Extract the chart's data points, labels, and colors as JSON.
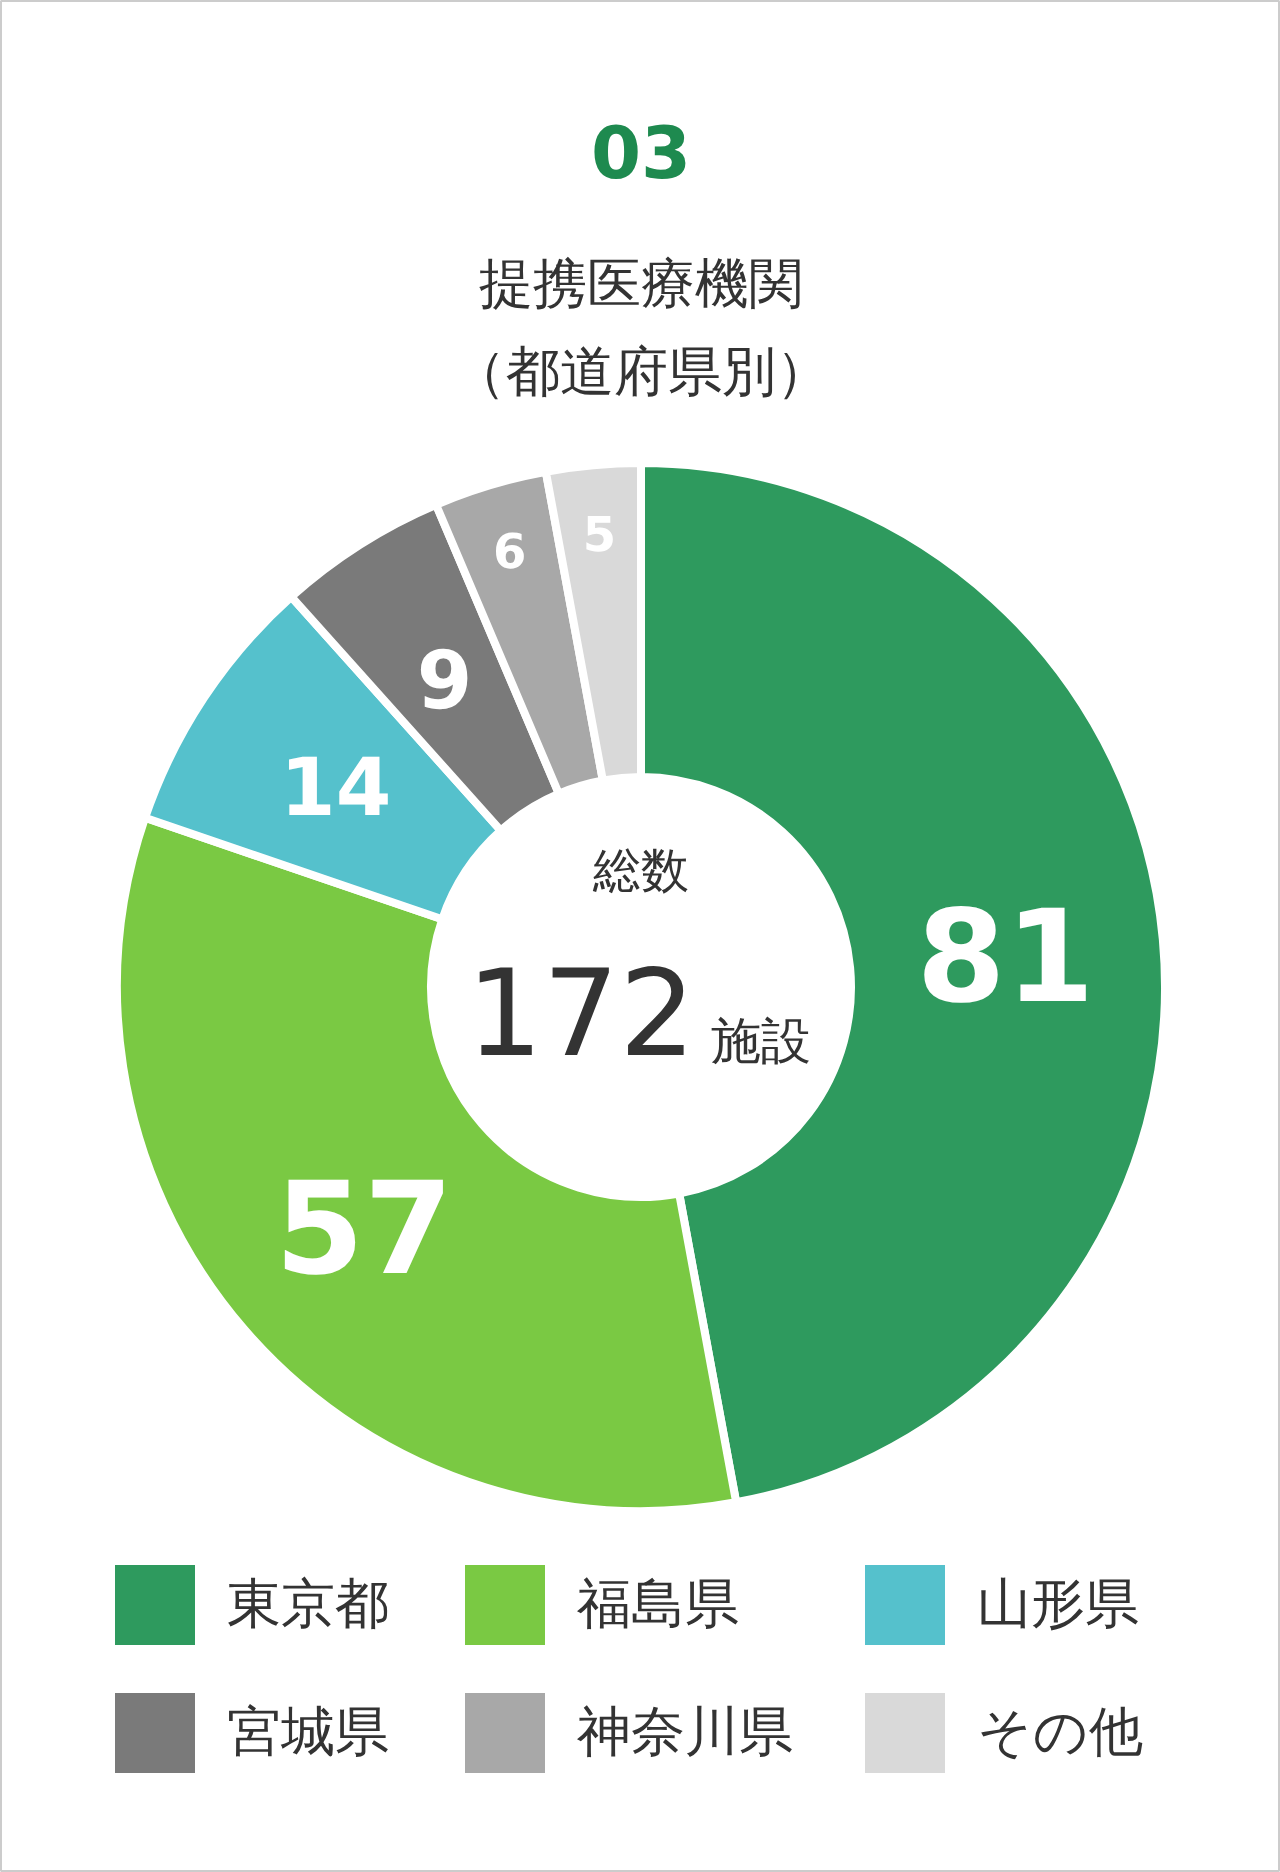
{
  "chart_data": {
    "type": "donut",
    "title": "03",
    "subtitle": "提携医療機関（都道府県別）",
    "categories": [
      "東京都",
      "福島県",
      "山形県",
      "宮城県",
      "神奈川県",
      "その他"
    ],
    "values": [
      81,
      57,
      14,
      9,
      6,
      5
    ],
    "colors": [
      "#2e9a5e",
      "#7ac943",
      "#55c1cc",
      "#7a7a7a",
      "#a8a8a8",
      "#d9d9d9"
    ],
    "annotations": [
      "総数",
      "172",
      "施設"
    ],
    "data_labels": true,
    "legend": "bottom"
  }
}
